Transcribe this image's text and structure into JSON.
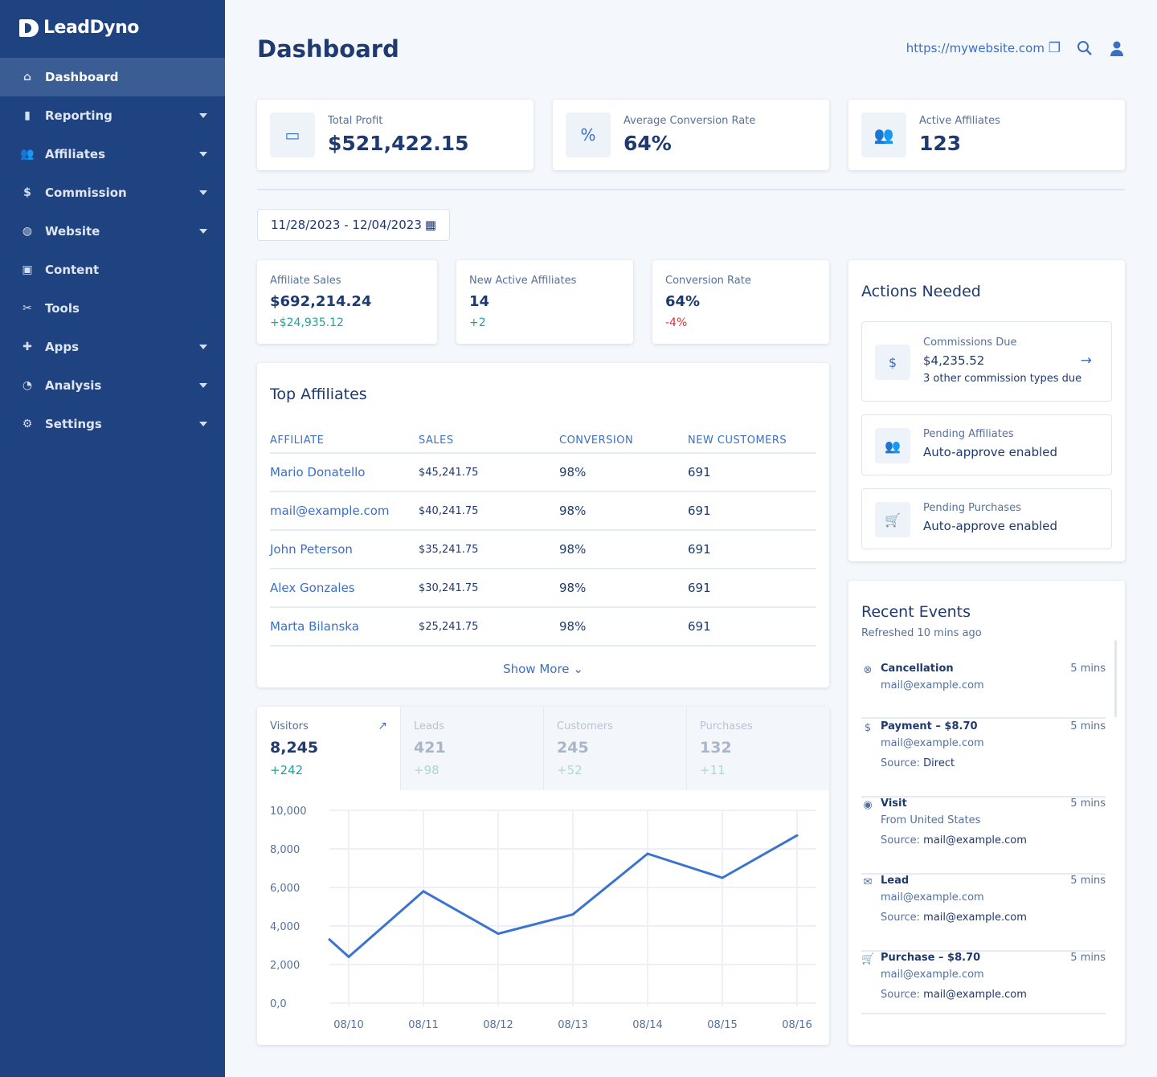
{
  "brand": "LeadDyno",
  "nav": [
    {
      "label": "Dashboard",
      "icon": "home-icon",
      "glyph": "⌂",
      "caret": false,
      "active": true
    },
    {
      "label": "Reporting",
      "icon": "bar-chart-icon",
      "glyph": "▮",
      "caret": true
    },
    {
      "label": "Affiliates",
      "icon": "users-icon",
      "glyph": "👥",
      "caret": true
    },
    {
      "label": "Commission",
      "icon": "dollar-circle-icon",
      "glyph": "$",
      "caret": true
    },
    {
      "label": "Website",
      "icon": "globe-icon",
      "glyph": "◍",
      "caret": true
    },
    {
      "label": "Content",
      "icon": "image-icon",
      "glyph": "▣",
      "caret": false
    },
    {
      "label": "Tools",
      "icon": "tools-icon",
      "glyph": "✂",
      "caret": false
    },
    {
      "label": "Apps",
      "icon": "puzzle-icon",
      "glyph": "✚",
      "caret": true
    },
    {
      "label": "Analysis",
      "icon": "pie-chart-icon",
      "glyph": "◔",
      "caret": true
    },
    {
      "label": "Settings",
      "icon": "gear-icon",
      "glyph": "⚙",
      "caret": true
    }
  ],
  "header": {
    "title": "Dashboard",
    "website": "https://mywebsite.com"
  },
  "kpis": [
    {
      "label": "Total Profit",
      "value": "$521,422.15",
      "icon": "wallet-icon"
    },
    {
      "label": "Average Conversion Rate",
      "value": "64%",
      "icon": "percent-badge-icon"
    },
    {
      "label": "Active Affiliates",
      "value": "123",
      "icon": "users-icon"
    }
  ],
  "date_range": "11/28/2023 - 12/04/2023",
  "stats": [
    {
      "label": "Affiliate Sales",
      "value": "$692,214.24",
      "delta": "+$24,935.12",
      "trend": "pos"
    },
    {
      "label": "New Active Affiliates",
      "value": "14",
      "delta": "+2",
      "trend": "pos"
    },
    {
      "label": "Conversion Rate",
      "value": "64%",
      "delta": "-4%",
      "trend": "neg"
    }
  ],
  "top_affiliates": {
    "title": "Top Affiliates",
    "columns": [
      "AFFILIATE",
      "SALES",
      "CONVERSION",
      "NEW CUSTOMERS"
    ],
    "rows": [
      [
        "Mario Donatello",
        "$45,241.75",
        "98%",
        "691"
      ],
      [
        "mail@example.com",
        "$40,241.75",
        "98%",
        "691"
      ],
      [
        "John Peterson",
        "$35,241.75",
        "98%",
        "691"
      ],
      [
        "Alex Gonzales",
        "$30,241.75",
        "98%",
        "691"
      ],
      [
        "Marta Bilanska",
        "$25,241.75",
        "98%",
        "691"
      ]
    ],
    "show_more": "Show More"
  },
  "metric_tabs": [
    {
      "label": "Visitors",
      "value": "8,245",
      "delta": "+242",
      "active": true
    },
    {
      "label": "Leads",
      "value": "421",
      "delta": "+98"
    },
    {
      "label": "Customers",
      "value": "245",
      "delta": "+52"
    },
    {
      "label": "Purchases",
      "value": "132",
      "delta": "+11"
    }
  ],
  "chart_data": {
    "type": "line",
    "categories": [
      "08/10",
      "08/11",
      "08/12",
      "08/13",
      "08/14",
      "08/15",
      "08/16"
    ],
    "leading_value": 3300,
    "values": [
      2400,
      5800,
      3600,
      4600,
      7750,
      6500,
      8700
    ],
    "ylim": [
      0,
      10000
    ],
    "yticks": [
      "0,0",
      "2,000",
      "4,000",
      "6,000",
      "8,000",
      "10,000"
    ],
    "grid": true,
    "color": "#3b73d1"
  },
  "actions": {
    "title": "Actions Needed",
    "items": [
      {
        "label": "Commissions Due",
        "value": "$4,235.52",
        "sub": "3 other commission types due",
        "icon": "dollar-circle-icon"
      },
      {
        "label": "Pending Affiliates",
        "value": "Auto-approve enabled",
        "icon": "users-icon"
      },
      {
        "label": "Pending Purchases",
        "value": "Auto-approve enabled",
        "icon": "cart-icon"
      }
    ]
  },
  "events": {
    "title": "Recent Events",
    "refreshed": "Refreshed 10 mins ago",
    "items": [
      {
        "title": "Cancellation",
        "time": "5 mins",
        "lines": [
          "mail@example.com"
        ],
        "icon": "x-circle-icon",
        "glyph": "⊗"
      },
      {
        "title": "Payment – $8.70",
        "time": "5 mins",
        "lines": [
          "mail@example.com"
        ],
        "source": "Direct",
        "icon": "dollar-icon",
        "glyph": "$"
      },
      {
        "title": "Visit",
        "time": "5 mins",
        "lines": [
          "From United States"
        ],
        "source": "mail@example.com",
        "icon": "eye-icon",
        "glyph": "◉"
      },
      {
        "title": "Lead",
        "time": "5 mins",
        "lines": [
          "mail@example.com"
        ],
        "source": "mail@example.com",
        "icon": "mail-icon",
        "glyph": "✉"
      },
      {
        "title": "Purchase – $8.70",
        "time": "5 mins",
        "lines": [
          "mail@example.com"
        ],
        "source": "mail@example.com",
        "icon": "cart-icon",
        "glyph": "🛒"
      }
    ],
    "source_label": "Source:"
  }
}
